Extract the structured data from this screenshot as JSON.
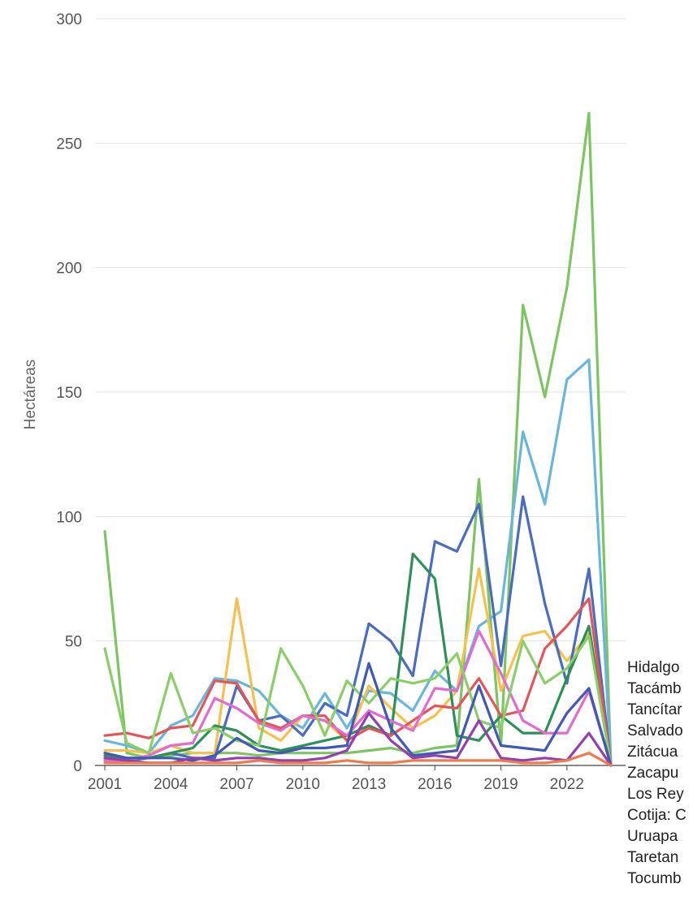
{
  "chart_data": {
    "type": "line",
    "title": "",
    "xlabel": "",
    "ylabel": "Hectáreas",
    "ylim": [
      0,
      300
    ],
    "xlim": [
      2001,
      2024
    ],
    "yticks": [
      "0",
      "50",
      "100",
      "150",
      "200",
      "250",
      "300"
    ],
    "xticks": [
      "2001",
      "2004",
      "2007",
      "2010",
      "2013",
      "2016",
      "2019",
      "2022"
    ],
    "grid": true,
    "legend_position": "bottom-right",
    "legend": [
      "Hidalgo",
      "Tacámb",
      "Tancítar",
      "Salvado",
      "Zitácua",
      "Zacapu",
      "Los Rey",
      "Cotija: C",
      "Uruapa",
      "Taretan",
      "Tocumb"
    ],
    "x": [
      2001,
      2002,
      2003,
      2004,
      2005,
      2006,
      2007,
      2008,
      2009,
      2010,
      2011,
      2012,
      2013,
      2014,
      2015,
      2016,
      2017,
      2018,
      2019,
      2020,
      2021,
      2022,
      2023,
      2024
    ],
    "series": [
      {
        "color": "#7dc462",
        "values": [
          94,
          5,
          3,
          4,
          5,
          5,
          5,
          4,
          5,
          5,
          5,
          5,
          6,
          7,
          5,
          7,
          8,
          115,
          8,
          185,
          148,
          192,
          262,
          0
        ]
      },
      {
        "color": "#6ab5dc",
        "values": [
          10,
          8,
          5,
          16,
          20,
          35,
          34,
          30,
          20,
          15,
          29,
          15,
          30,
          29,
          22,
          38,
          30,
          56,
          62,
          134,
          105,
          155,
          163,
          0
        ]
      },
      {
        "color": "#f4c150",
        "values": [
          6,
          6,
          5,
          8,
          5,
          5,
          67,
          15,
          10,
          20,
          18,
          10,
          32,
          23,
          15,
          20,
          30,
          79,
          30,
          52,
          54,
          42,
          53,
          0
        ]
      },
      {
        "color": "#4b6bbf",
        "values": [
          3,
          2,
          3,
          5,
          3,
          3,
          32,
          18,
          20,
          12,
          25,
          20,
          57,
          50,
          36,
          90,
          86,
          105,
          40,
          108,
          65,
          33,
          79,
          0
        ]
      },
      {
        "color": "#2e8f59",
        "values": [
          4,
          3,
          3,
          5,
          7,
          16,
          14,
          8,
          6,
          8,
          10,
          12,
          16,
          12,
          85,
          75,
          12,
          10,
          20,
          13,
          13,
          35,
          56,
          0
        ]
      },
      {
        "color": "#e15759",
        "values": [
          12,
          13,
          11,
          15,
          16,
          34,
          33,
          18,
          15,
          20,
          20,
          10,
          15,
          12,
          18,
          24,
          23,
          35,
          20,
          22,
          47,
          56,
          67,
          0
        ]
      },
      {
        "color": "#df6cce",
        "values": [
          2,
          2,
          4,
          8,
          9,
          27,
          23,
          17,
          14,
          20,
          18,
          12,
          22,
          18,
          14,
          31,
          30,
          54,
          37,
          18,
          13,
          13,
          30,
          0
        ]
      },
      {
        "color": "#8bcd6a",
        "values": [
          47,
          9,
          5,
          37,
          13,
          15,
          10,
          8,
          47,
          32,
          12,
          34,
          25,
          35,
          33,
          35,
          45,
          18,
          15,
          50,
          33,
          39,
          52,
          0
        ]
      },
      {
        "color": "#3f59b5",
        "values": [
          5,
          3,
          3,
          3,
          2,
          4,
          11,
          6,
          5,
          7,
          7,
          8,
          41,
          15,
          4,
          5,
          6,
          32,
          8,
          7,
          6,
          21,
          31,
          0
        ]
      },
      {
        "color": "#9140ae",
        "values": [
          3,
          2,
          1,
          1,
          3,
          2,
          3,
          3,
          2,
          2,
          3,
          6,
          21,
          10,
          3,
          4,
          3,
          18,
          3,
          2,
          3,
          2,
          13,
          0
        ]
      },
      {
        "color": "#ed7b4c",
        "values": [
          1,
          1,
          1,
          1,
          1,
          1,
          1,
          2,
          1,
          1,
          1,
          2,
          1,
          1,
          2,
          2,
          2,
          2,
          2,
          1,
          1,
          2,
          5,
          0
        ]
      }
    ]
  }
}
